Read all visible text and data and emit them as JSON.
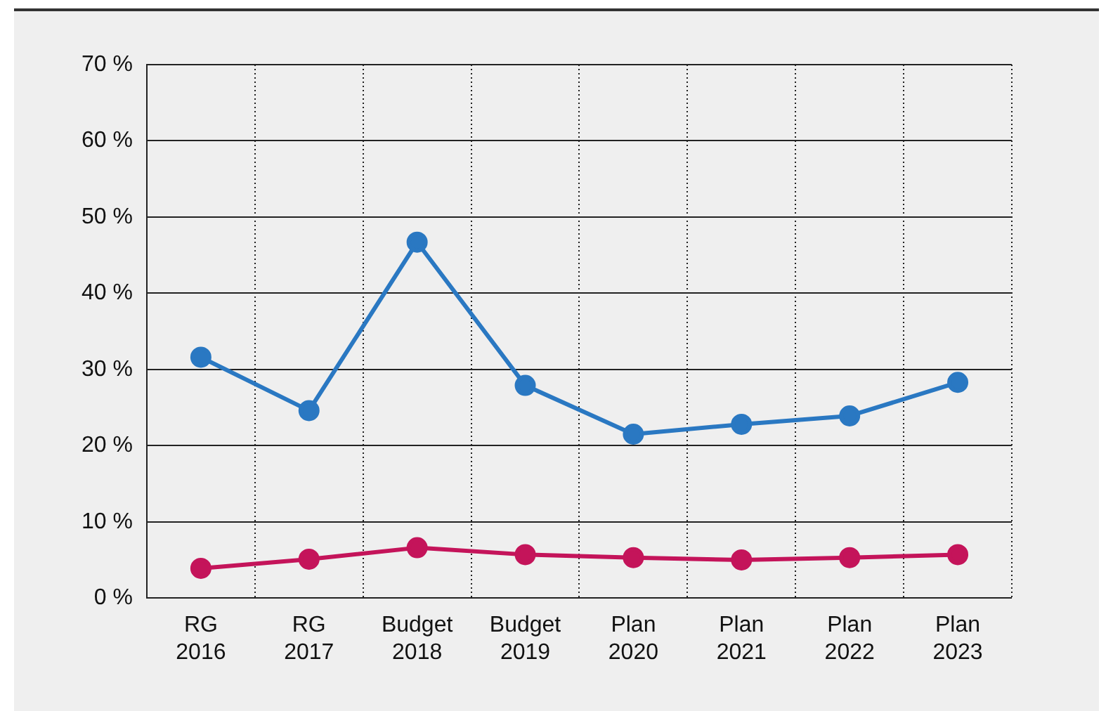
{
  "chart_data": {
    "type": "line",
    "categories": [
      "RG 2016",
      "RG 2017",
      "Budget 2018",
      "Budget 2019",
      "Plan 2020",
      "Plan 2021",
      "Plan 2022",
      "Plan 2023"
    ],
    "series": [
      {
        "color": "#2a78c2",
        "values": [
          31.6,
          24.6,
          46.7,
          27.9,
          21.5,
          22.8,
          23.9,
          28.3
        ]
      },
      {
        "color": "#c4145a",
        "values": [
          3.9,
          5.1,
          6.6,
          5.7,
          5.3,
          5.0,
          5.3,
          5.7
        ]
      }
    ],
    "ylim": [
      0,
      70
    ],
    "yticks": [
      {
        "value": 0,
        "label": "0 %"
      },
      {
        "value": 10,
        "label": "10 %"
      },
      {
        "value": 20,
        "label": "20 %"
      },
      {
        "value": 30,
        "label": "30 %"
      },
      {
        "value": 40,
        "label": "40 %"
      },
      {
        "value": 50,
        "label": "50 %"
      },
      {
        "value": 60,
        "label": "60 %"
      },
      {
        "value": 70,
        "label": "70 %"
      }
    ],
    "grid": true,
    "legend": false,
    "marker": "circle",
    "line_style": "solid"
  }
}
